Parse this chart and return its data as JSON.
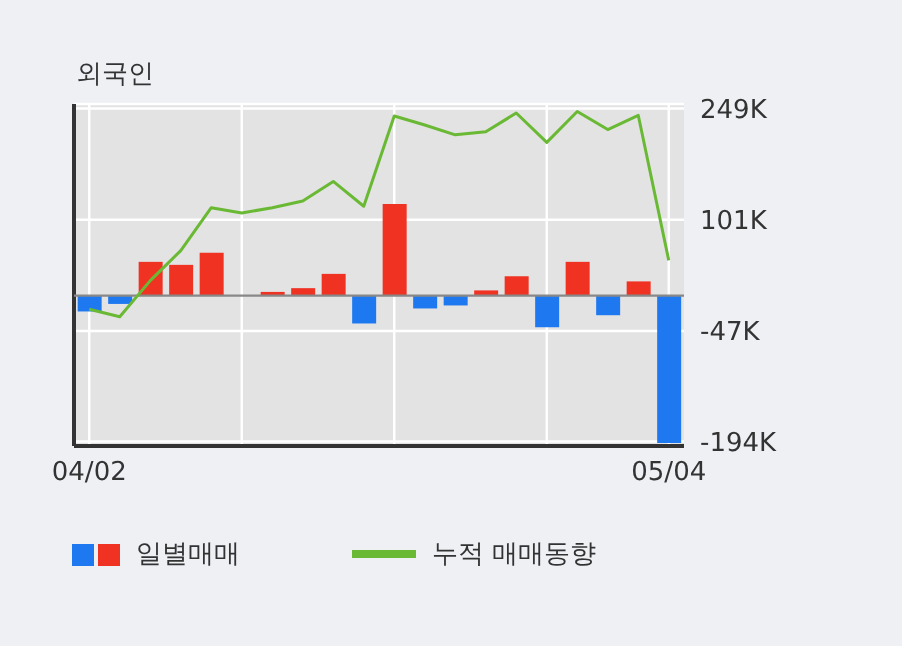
{
  "chart_data": {
    "type": "bar",
    "title": "외국인",
    "categories": [
      "04/02",
      null,
      null,
      null,
      null,
      null,
      null,
      null,
      null,
      null,
      null,
      null,
      null,
      null,
      null,
      null,
      null,
      null,
      null,
      "05/04"
    ],
    "series": [
      {
        "name": "일별매매",
        "colors": [
          "#1e78f0",
          "#1e78f0",
          "#f03223",
          "#f03223",
          "#f03223",
          "#f03223",
          "#f03223",
          "#f03223",
          "#f03223",
          "#1e78f0",
          "#f03223",
          "#1e78f0",
          "#1e78f0",
          "#f03223",
          "#f03223",
          "#1e78f0",
          "#f03223",
          "#1e78f0",
          "#f03223",
          "#1e78f0"
        ],
        "values": [
          -21,
          -11,
          45,
          41,
          57,
          0,
          5,
          10,
          29,
          -37,
          122,
          -17,
          -13,
          7,
          26,
          -42,
          45,
          -26,
          19,
          -196
        ]
      },
      {
        "name": "누적 매매동향",
        "type": "line",
        "color": "#6ab934",
        "values": [
          -18,
          -28,
          20,
          60,
          117,
          110,
          117,
          126,
          152,
          119,
          239,
          227,
          214,
          218,
          243,
          204,
          245,
          221,
          240,
          47
        ]
      }
    ],
    "ylim": [
      -200,
      255
    ],
    "yticks": [
      {
        "value": 249,
        "label": "249K"
      },
      {
        "value": 101,
        "label": "101K"
      },
      {
        "value": -47,
        "label": "-47K"
      },
      {
        "value": -194,
        "label": "-194K"
      }
    ],
    "ref_lines": [
      {
        "axis": "y",
        "value": 0,
        "color": "#888888"
      }
    ],
    "grid": true,
    "legend": "bottom",
    "marker": "none",
    "line_style": "solid"
  }
}
